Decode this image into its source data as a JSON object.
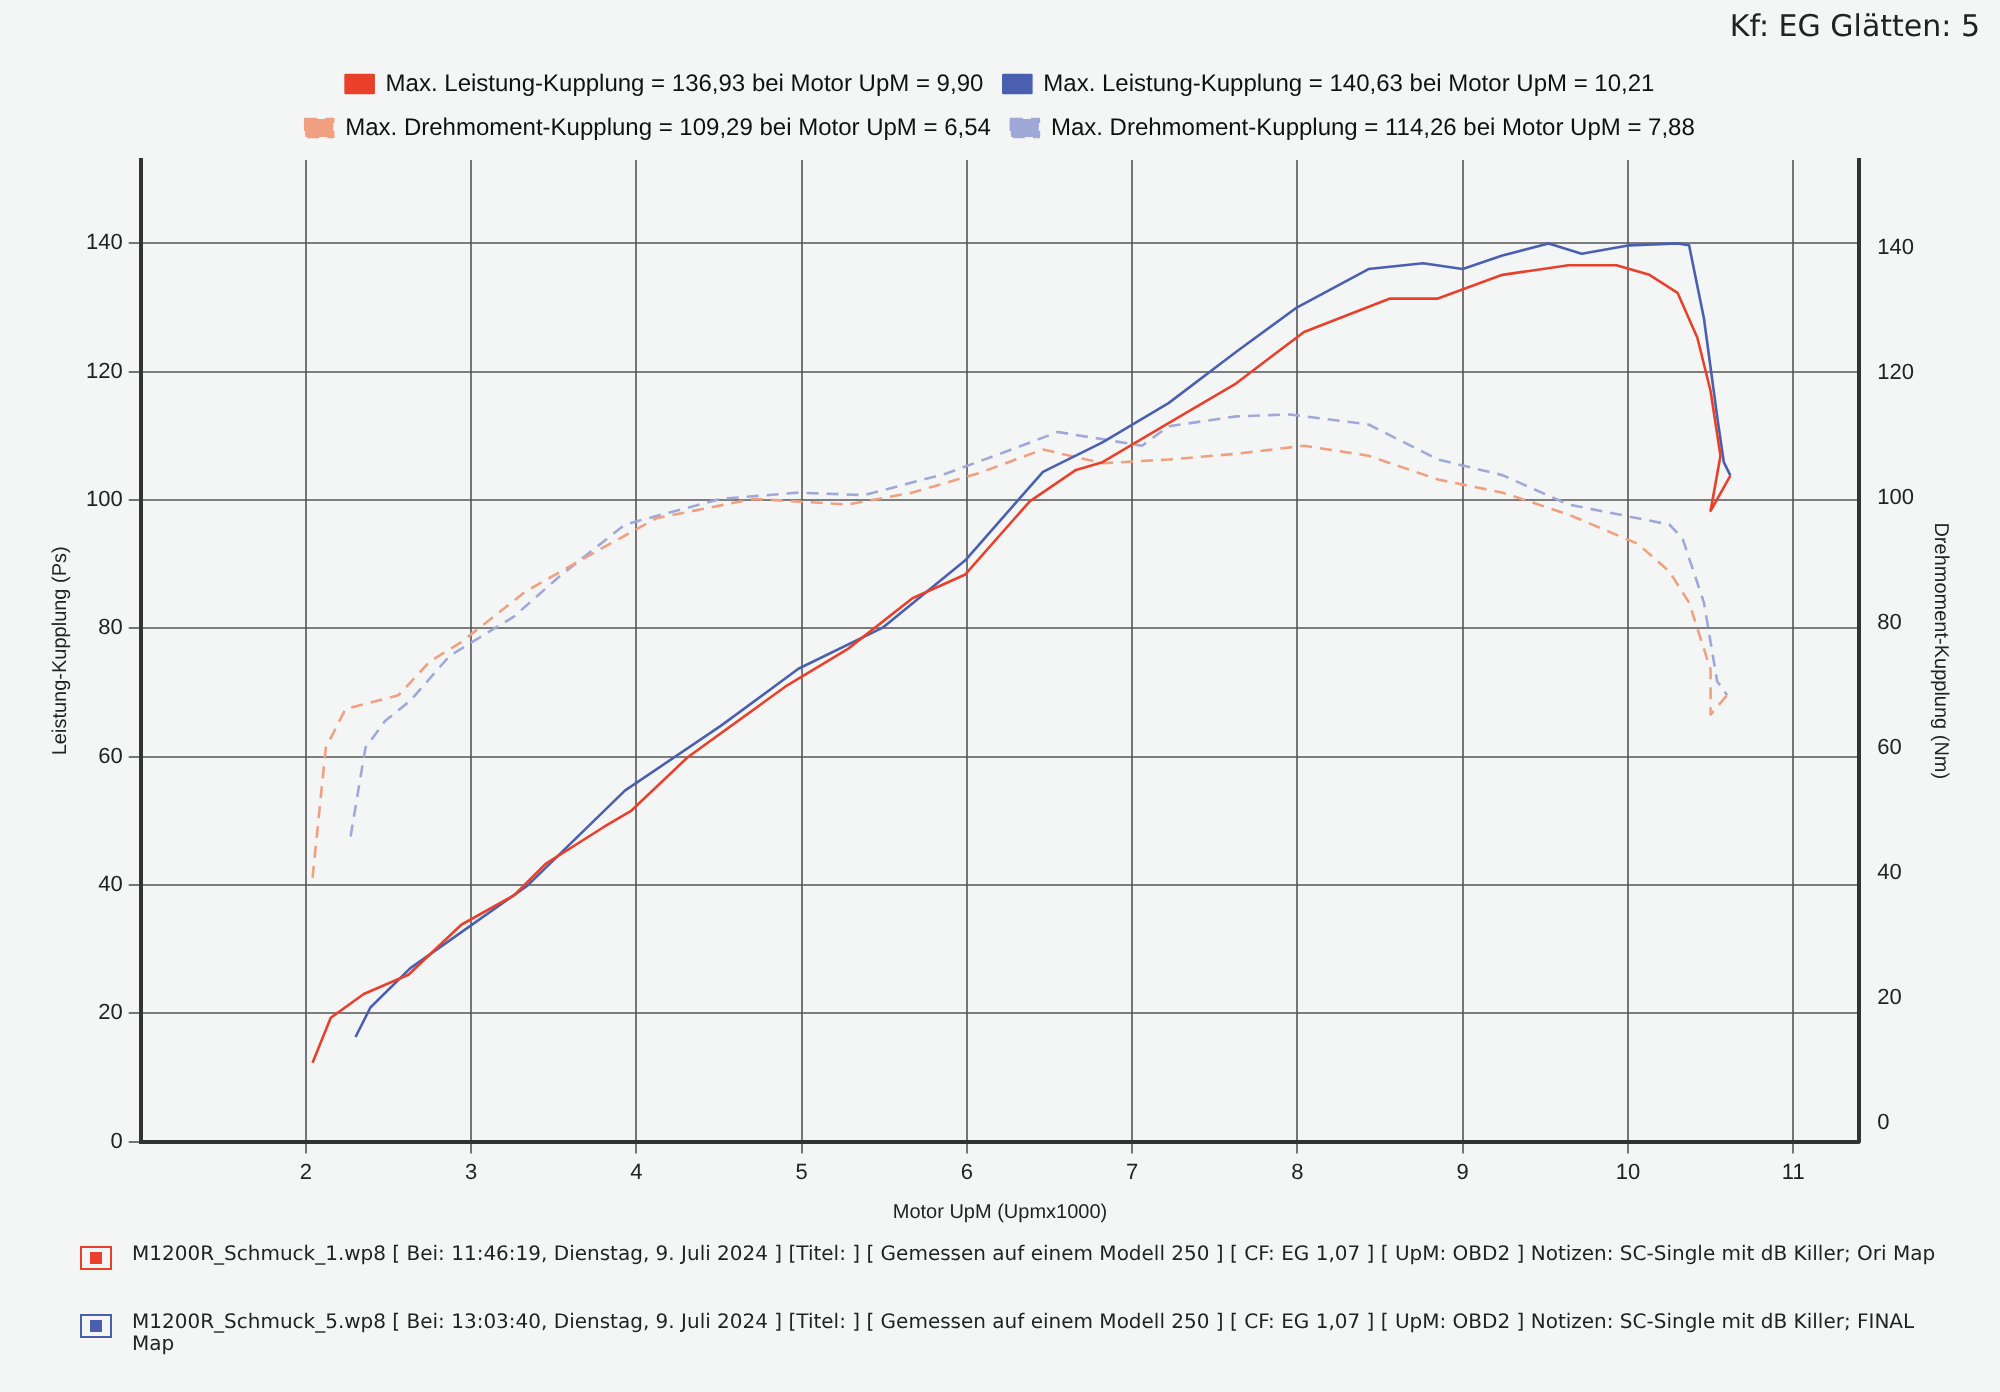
{
  "chart_data": {
    "type": "line",
    "xlabel": "Motor UpM (Upmx1000)",
    "ylabel": "Leistung-Kupplung (Ps)",
    "y2label": "Drehmoment-Kupplung (Nm)",
    "xlim": [
      1,
      11.4
    ],
    "xticks": [
      2,
      3,
      4,
      5,
      6,
      7,
      8,
      9,
      10,
      11
    ],
    "ylim": [
      0,
      153
    ],
    "yticks": [
      0,
      20,
      40,
      60,
      80,
      100,
      120,
      140
    ],
    "y2lim": [
      -3,
      154
    ],
    "y2ticks": [
      0,
      20,
      40,
      60,
      80,
      100,
      120,
      140
    ],
    "grid": true,
    "legend": "top",
    "marker": "none",
    "series": [
      {
        "name": "Max. Leistung-Kupplung = 136,93 bei Motor UpM = 9,90",
        "color": "#e8402a",
        "line_style": "solid",
        "x": [
          2.04,
          2.15,
          2.35,
          2.62,
          2.94,
          3.26,
          3.45,
          3.8,
          3.97,
          4.31,
          4.9,
          5.28,
          5.67,
          5.99,
          6.38,
          6.66,
          6.82,
          7.22,
          7.63,
          8.04,
          8.56,
          8.85,
          9.24,
          9.64,
          9.93,
          10.13,
          10.3,
          10.42,
          10.5,
          10.56,
          10.5,
          10.62
        ],
        "values": [
          12.3,
          19.3,
          23,
          26,
          33.8,
          38.4,
          43.3,
          49,
          51.6,
          59.9,
          70.9,
          76.8,
          84.7,
          88.4,
          99.8,
          104.7,
          105.9,
          112,
          118.2,
          126.2,
          131.4,
          131.4,
          135.1,
          136.6,
          136.6,
          135.1,
          132.3,
          125.3,
          117,
          106.9,
          98.3,
          103.8
        ]
      },
      {
        "name": "Max. Leistung-Kupplung = 140,63 bei Motor UpM = 10,21",
        "color": "#4a5fb0",
        "line_style": "solid",
        "x": [
          2.3,
          2.39,
          2.63,
          3.34,
          3.93,
          4.51,
          4.98,
          5.49,
          5.99,
          6.46,
          6.82,
          7.22,
          7.63,
          7.99,
          8.43,
          8.76,
          9.0,
          9.24,
          9.52,
          9.72,
          10.01,
          10.3,
          10.37,
          10.46,
          10.54,
          10.58,
          10.62
        ],
        "values": [
          16.3,
          20.9,
          27,
          39.9,
          54.7,
          64.8,
          73.7,
          80.1,
          90.6,
          104.4,
          109,
          115.1,
          123.1,
          129.9,
          136,
          136.9,
          136,
          138.1,
          140,
          138.4,
          139.7,
          140,
          139.7,
          128.3,
          113,
          105.9,
          103.8
        ]
      },
      {
        "name": "Max. Drehmoment-Kupplung = 109,29 bei Motor UpM = 6,54",
        "color": "#f0a080",
        "line_style": "dashed",
        "axis": "y2",
        "x": [
          2.04,
          2.12,
          2.24,
          2.56,
          2.75,
          2.94,
          3.33,
          3.73,
          4.12,
          4.71,
          5.28,
          5.67,
          6.07,
          6.46,
          6.82,
          7.22,
          7.63,
          8.04,
          8.43,
          8.85,
          9.24,
          9.64,
          10.06,
          10.25,
          10.37,
          10.5,
          10.5,
          10.6
        ],
        "values": [
          39.2,
          60,
          66.2,
          68.4,
          73.8,
          76.9,
          85,
          91,
          96.7,
          99.8,
          98.9,
          100.8,
          103.9,
          107.7,
          105.5,
          106.1,
          107,
          108.3,
          106.7,
          102.9,
          100.8,
          97.3,
          92.6,
          88.2,
          83.2,
          72.5,
          65.3,
          68.4
        ]
      },
      {
        "name": "Max. Drehmoment-Kupplung = 114,26 bei Motor UpM = 7,88",
        "color": "#a0a8d8",
        "line_style": "dashed",
        "axis": "y2",
        "x": [
          2.27,
          2.36,
          2.48,
          2.63,
          2.87,
          3.26,
          3.53,
          3.93,
          4.51,
          4.98,
          5.38,
          5.88,
          6.27,
          6.55,
          7.06,
          7.22,
          7.63,
          7.95,
          8.43,
          8.85,
          9.24,
          9.64,
          10.25,
          10.33,
          10.46,
          10.54,
          10.6
        ],
        "values": [
          45.8,
          60,
          64.3,
          67.5,
          74.7,
          81,
          87.3,
          95.7,
          99.8,
          100.8,
          100.4,
          103.9,
          107.7,
          110.5,
          108.3,
          111.4,
          113,
          113.3,
          111.7,
          106.1,
          103.6,
          98.9,
          95.7,
          93.5,
          83.2,
          70.6,
          68.4
        ]
      }
    ],
    "annotations": [
      "Kf: EG Glätten: 5",
      "M1200R_Schmuck_1.wp8 [ Bei: 11:46:19, Dienstag, 9. Juli 2024 ] [Titel: ]  [ Gemessen auf einem Modell 250 ] [ CF: EG 1,07 ] [ UpM: OBD2 ] Notizen: SC-Single mit dB Killer; Ori Map",
      "M1200R_Schmuck_5.wp8 [ Bei: 13:03:40, Dienstag, 9. Juli 2024 ] [Titel: ]  [ Gemessen auf einem Modell 250 ] [ CF: EG 1,07 ] [ UpM: OBD2 ] Notizen: SC-Single mit dB Killer; FINAL Map"
    ]
  }
}
